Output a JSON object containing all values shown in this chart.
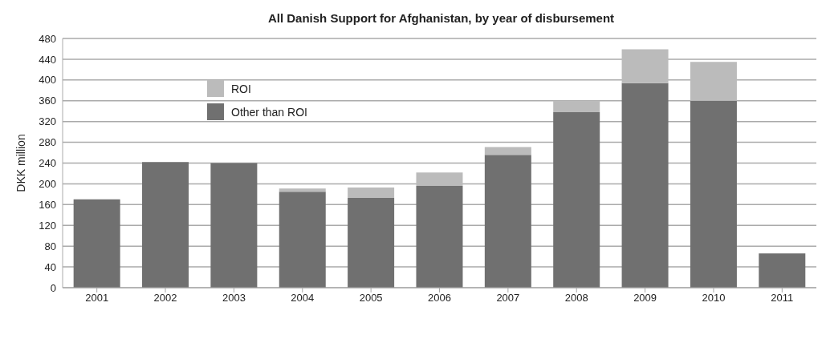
{
  "chart_data": {
    "type": "bar",
    "title": "All Danish Support for Afghanistan, by year of disbursement",
    "ylabel": "DKK million",
    "categories": [
      "2001",
      "2002",
      "2003",
      "2004",
      "2005",
      "2006",
      "2007",
      "2008",
      "2009",
      "2010",
      "2011"
    ],
    "stacked": true,
    "series": [
      {
        "name": "Other than ROI",
        "color": "#707070",
        "values": [
          170,
          242,
          240,
          185,
          173,
          196,
          256,
          338,
          394,
          360,
          66
        ]
      },
      {
        "name": "ROI",
        "color": "#bbbbbb",
        "values": [
          0,
          0,
          0,
          6,
          20,
          26,
          15,
          22,
          65,
          75,
          0
        ]
      }
    ],
    "ylim": [
      0,
      480
    ],
    "yticks": [
      0,
      40,
      80,
      120,
      160,
      200,
      240,
      280,
      320,
      360,
      400,
      440,
      480
    ],
    "grid": "y",
    "legend": "top left"
  }
}
